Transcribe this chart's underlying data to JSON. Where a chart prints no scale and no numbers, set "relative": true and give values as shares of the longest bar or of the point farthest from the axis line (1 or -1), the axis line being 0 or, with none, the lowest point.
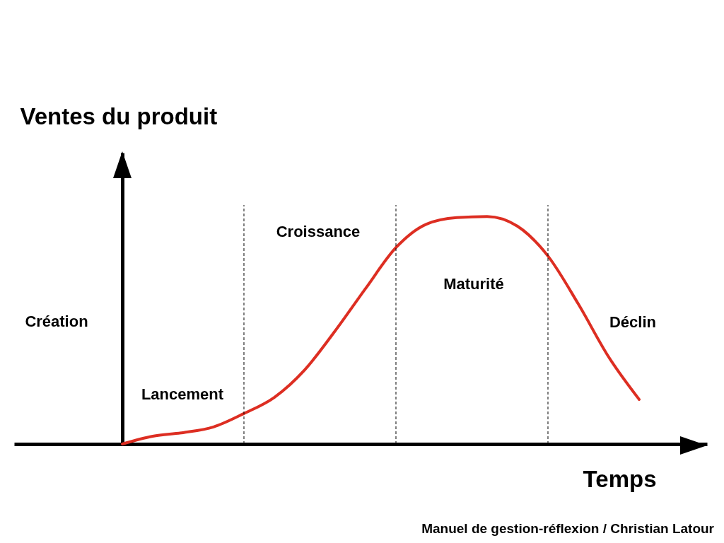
{
  "chart_data": {
    "type": "line",
    "relative": true,
    "ylabel": "Ventes du produit",
    "xlabel": "Temps",
    "categories": [
      null,
      null,
      null,
      null,
      null,
      null,
      null,
      null,
      null,
      null,
      null,
      null,
      null,
      null,
      null,
      null,
      null,
      null
    ],
    "series": [
      {
        "color": "#dd2e22",
        "values": [
          0,
          0.034,
          0.05,
          0.075,
          0.134,
          0.205,
          0.326,
          0.497,
          0.683,
          0.863,
          0.966,
          0.995,
          1,
          0.957,
          0.826,
          0.615,
          0.382,
          0.196
        ]
      }
    ],
    "annotations": [
      "Création",
      "Lancement",
      "Croissance",
      "Maturité",
      "Déclin",
      "Manuel de gestion-réflexion / Christian Latour"
    ],
    "grid": "x",
    "marker": "none",
    "line_style": "solid"
  }
}
